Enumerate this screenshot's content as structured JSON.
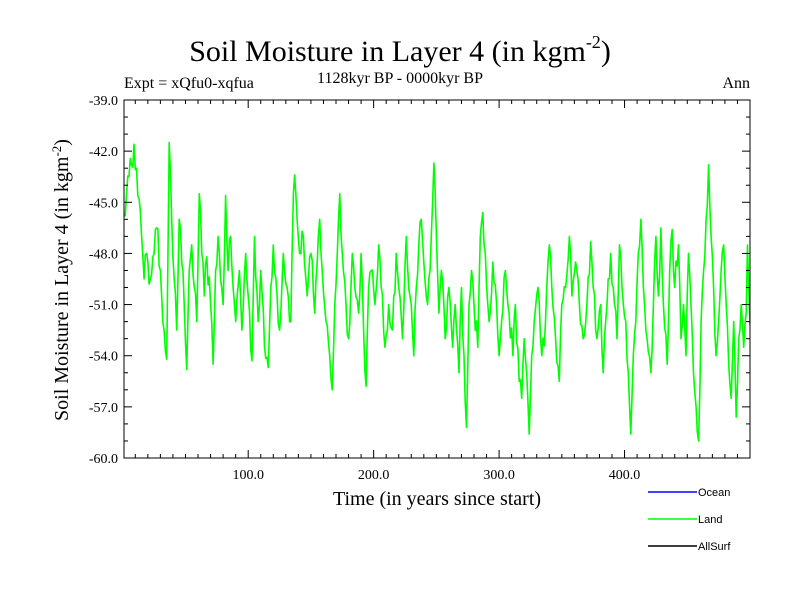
{
  "header": {
    "title": "Soil Moisture in Layer 4 (in kgm",
    "title_sup": "-2",
    "title_close": ")",
    "subtitle": "1128kyr BP - 0000kyr BP",
    "experiment": "Expt = xQfu0-xqfua",
    "season": "Ann"
  },
  "chart_data": {
    "type": "line",
    "title": "Soil Moisture in Layer 4 (in kgm-2)",
    "subtitle": "1128kyr BP - 0000kyr BP",
    "xlabel": "Time (in years since start)",
    "ylabel": "Soil Moisture in Layer 4 (in kgm-2)",
    "ylabel_main": "Soil Moisture in Layer 4 (in kgm",
    "ylabel_sup": "-2",
    "ylabel_close": ")",
    "xlim": [
      1,
      500
    ],
    "ylim": [
      -60.0,
      -39.0
    ],
    "xticks": [
      100,
      200,
      300,
      400
    ],
    "xtick_labels": [
      "100.0",
      "200.0",
      "300.0",
      "400.0"
    ],
    "yticks": [
      -39,
      -42,
      -45,
      -48,
      -51,
      -54,
      -57,
      -60
    ],
    "ytick_labels": [
      "-39.0",
      "-42.0",
      "-45.0",
      "-48.0",
      "-51.0",
      "-54.0",
      "-57.0",
      "-60.0"
    ],
    "legend": [
      "Ocean",
      "Land",
      "AllSurf"
    ],
    "series": [
      {
        "name": "Land",
        "color": "#00ff00",
        "keypoints": [
          [
            1,
            -45.8
          ],
          [
            3,
            -44.5
          ],
          [
            5,
            -43.5
          ],
          [
            7,
            -42.8
          ],
          [
            9,
            -41.6
          ],
          [
            11,
            -43.0
          ],
          [
            13,
            -44.8
          ],
          [
            15,
            -47.0
          ],
          [
            17,
            -49.5
          ],
          [
            19,
            -48.0
          ],
          [
            21,
            -49.8
          ],
          [
            24,
            -48.2
          ],
          [
            27,
            -46.5
          ],
          [
            30,
            -49.0
          ],
          [
            33,
            -52.5
          ],
          [
            35,
            -54.2
          ],
          [
            37,
            -41.5
          ],
          [
            39,
            -46.0
          ],
          [
            41,
            -49.5
          ],
          [
            43,
            -52.5
          ],
          [
            45,
            -46.0
          ],
          [
            47,
            -48.5
          ],
          [
            49,
            -51.0
          ],
          [
            51,
            -54.8
          ],
          [
            53,
            -49.0
          ],
          [
            55,
            -47.5
          ],
          [
            57,
            -50.0
          ],
          [
            59,
            -52.0
          ],
          [
            61,
            -44.5
          ],
          [
            63,
            -48.0
          ],
          [
            65,
            -50.5
          ],
          [
            67,
            -48.2
          ],
          [
            70,
            -51.0
          ],
          [
            72,
            -54.5
          ],
          [
            74,
            -49.0
          ],
          [
            76,
            -47.0
          ],
          [
            78,
            -49.5
          ],
          [
            80,
            -51.0
          ],
          [
            82,
            -44.6
          ],
          [
            84,
            -49.0
          ],
          [
            86,
            -47.0
          ],
          [
            88,
            -50.0
          ],
          [
            90,
            -52.0
          ],
          [
            93,
            -49.0
          ],
          [
            95,
            -52.5
          ],
          [
            98,
            -48.0
          ],
          [
            100,
            -50.5
          ],
          [
            103,
            -54.3
          ],
          [
            105,
            -47.0
          ],
          [
            108,
            -52.0
          ],
          [
            110,
            -49.0
          ],
          [
            113,
            -53.5
          ],
          [
            116,
            -54.7
          ],
          [
            118,
            -50.0
          ],
          [
            120,
            -47.5
          ],
          [
            123,
            -50.5
          ],
          [
            125,
            -52.5
          ],
          [
            128,
            -48.0
          ],
          [
            131,
            -50.0
          ],
          [
            134,
            -52.0
          ],
          [
            136,
            -44.5
          ],
          [
            137,
            -43.4
          ],
          [
            139,
            -46.0
          ],
          [
            141,
            -48.0
          ],
          [
            144,
            -47.0
          ],
          [
            147,
            -50.5
          ],
          [
            150,
            -48.0
          ],
          [
            153,
            -51.5
          ],
          [
            155,
            -48.5
          ],
          [
            157,
            -46.0
          ],
          [
            159,
            -49.0
          ],
          [
            162,
            -52.0
          ],
          [
            165,
            -54.0
          ],
          [
            167,
            -56.0
          ],
          [
            169,
            -51.0
          ],
          [
            171,
            -48.0
          ],
          [
            173,
            -44.5
          ],
          [
            175,
            -48.0
          ],
          [
            178,
            -51.0
          ],
          [
            180,
            -53.0
          ],
          [
            183,
            -48.0
          ],
          [
            185,
            -50.0
          ],
          [
            188,
            -51.5
          ],
          [
            190,
            -48.0
          ],
          [
            192,
            -52.5
          ],
          [
            194,
            -55.8
          ],
          [
            196,
            -50.0
          ],
          [
            198,
            -49.0
          ],
          [
            201,
            -51.0
          ],
          [
            204,
            -47.5
          ],
          [
            206,
            -50.0
          ],
          [
            209,
            -53.5
          ],
          [
            212,
            -51.0
          ],
          [
            215,
            -52.5
          ],
          [
            218,
            -48.0
          ],
          [
            220,
            -50.0
          ],
          [
            223,
            -53.0
          ],
          [
            226,
            -47.0
          ],
          [
            229,
            -50.5
          ],
          [
            232,
            -54.0
          ],
          [
            234,
            -50.0
          ],
          [
            236,
            -47.5
          ],
          [
            238,
            -46.0
          ],
          [
            240,
            -48.5
          ],
          [
            243,
            -51.0
          ],
          [
            245,
            -49.0
          ],
          [
            247,
            -45.0
          ],
          [
            248,
            -42.7
          ],
          [
            250,
            -47.0
          ],
          [
            252,
            -51.5
          ],
          [
            254,
            -49.0
          ],
          [
            257,
            -53.0
          ],
          [
            260,
            -50.0
          ],
          [
            263,
            -53.5
          ],
          [
            265,
            -51.0
          ],
          [
            268,
            -55.0
          ],
          [
            270,
            -50.0
          ],
          [
            272,
            -54.0
          ],
          [
            274,
            -58.2
          ],
          [
            276,
            -51.0
          ],
          [
            278,
            -49.0
          ],
          [
            280,
            -51.0
          ],
          [
            283,
            -53.5
          ],
          [
            285,
            -47.0
          ],
          [
            287,
            -45.6
          ],
          [
            289,
            -48.0
          ],
          [
            292,
            -52.0
          ],
          [
            295,
            -48.5
          ],
          [
            298,
            -51.0
          ],
          [
            300,
            -54.0
          ],
          [
            302,
            -52.0
          ],
          [
            305,
            -49.0
          ],
          [
            308,
            -51.5
          ],
          [
            311,
            -54.0
          ],
          [
            313,
            -51.0
          ],
          [
            316,
            -55.5
          ],
          [
            318,
            -56.5
          ],
          [
            320,
            -53.0
          ],
          [
            322,
            -55.0
          ],
          [
            324,
            -58.6
          ],
          [
            326,
            -54.0
          ],
          [
            328,
            -52.0
          ],
          [
            331,
            -50.0
          ],
          [
            334,
            -54.0
          ],
          [
            337,
            -52.0
          ],
          [
            340,
            -47.5
          ],
          [
            342,
            -50.0
          ],
          [
            345,
            -53.0
          ],
          [
            348,
            -55.5
          ],
          [
            350,
            -51.0
          ],
          [
            353,
            -50.0
          ],
          [
            356,
            -47.0
          ],
          [
            358,
            -50.5
          ],
          [
            361,
            -48.5
          ],
          [
            364,
            -51.0
          ],
          [
            367,
            -53.0
          ],
          [
            370,
            -51.0
          ],
          [
            373,
            -47.3
          ],
          [
            375,
            -50.0
          ],
          [
            378,
            -53.0
          ],
          [
            381,
            -51.0
          ],
          [
            383,
            -55.0
          ],
          [
            386,
            -51.0
          ],
          [
            389,
            -48.0
          ],
          [
            392,
            -51.0
          ],
          [
            394,
            -53.0
          ],
          [
            396,
            -47.5
          ],
          [
            398,
            -50.0
          ],
          [
            401,
            -52.0
          ],
          [
            403,
            -55.0
          ],
          [
            405,
            -58.6
          ],
          [
            407,
            -54.0
          ],
          [
            409,
            -52.0
          ],
          [
            411,
            -48.0
          ],
          [
            413,
            -46.0
          ],
          [
            415,
            -50.0
          ],
          [
            418,
            -53.0
          ],
          [
            421,
            -55.0
          ],
          [
            423,
            -51.0
          ],
          [
            425,
            -47.0
          ],
          [
            427,
            -50.5
          ],
          [
            429,
            -46.5
          ],
          [
            431,
            -51.0
          ],
          [
            434,
            -54.5
          ],
          [
            436,
            -49.0
          ],
          [
            438,
            -46.6
          ],
          [
            440,
            -50.0
          ],
          [
            443,
            -47.5
          ],
          [
            445,
            -53.0
          ],
          [
            447,
            -51.0
          ],
          [
            449,
            -54.0
          ],
          [
            451,
            -48.0
          ],
          [
            453,
            -51.0
          ],
          [
            455,
            -55.0
          ],
          [
            457,
            -57.0
          ],
          [
            459,
            -59.0
          ],
          [
            461,
            -52.0
          ],
          [
            463,
            -49.0
          ],
          [
            465,
            -46.0
          ],
          [
            467,
            -42.8
          ],
          [
            469,
            -47.0
          ],
          [
            471,
            -50.0
          ],
          [
            473,
            -54.0
          ],
          [
            475,
            -52.0
          ],
          [
            477,
            -49.0
          ],
          [
            479,
            -47.5
          ],
          [
            481,
            -51.0
          ],
          [
            483,
            -54.5
          ],
          [
            485,
            -56.5
          ],
          [
            487,
            -52.0
          ],
          [
            489,
            -57.6
          ],
          [
            491,
            -53.0
          ],
          [
            493,
            -51.0
          ],
          [
            495,
            -53.5
          ],
          [
            497,
            -51.5
          ],
          [
            498,
            -47.5
          ],
          [
            499,
            -50.0
          ],
          [
            500,
            -52.2
          ]
        ]
      }
    ]
  },
  "colors": {
    "ocean": "#0000ff",
    "land": "#00ff00",
    "allsurf": "#000000"
  }
}
